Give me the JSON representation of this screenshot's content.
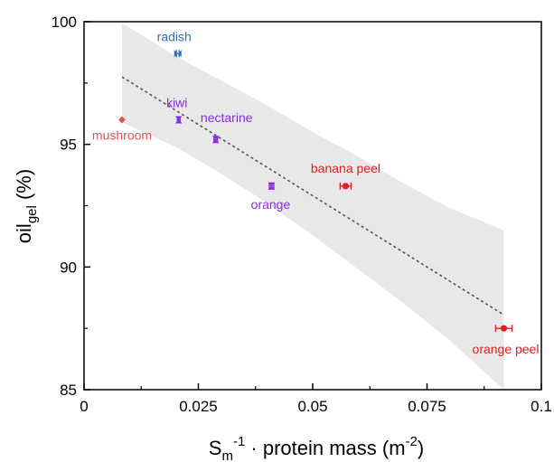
{
  "chart_data": {
    "type": "scatter",
    "xlabel": {
      "base": "S",
      "sub": "m",
      "sup": "-1",
      "rest": " · protein mass (m",
      "rest_sup": "-2",
      "tail": ")"
    },
    "ylabel": {
      "base": "oil",
      "sub": "gel",
      "tail": " (%)"
    },
    "xlim": [
      0,
      0.1
    ],
    "ylim": [
      85,
      100
    ],
    "x_ticks": [
      0,
      0.025,
      0.05,
      0.075,
      0.1
    ],
    "x_tick_labels": [
      "0",
      "0.025",
      "0.05",
      "0.075",
      "0.1"
    ],
    "y_ticks": [
      85,
      90,
      95,
      100
    ],
    "y_tick_labels": [
      "85",
      "90",
      "95",
      "100"
    ],
    "grid": false,
    "points": [
      {
        "label": "radish",
        "x": 0.0205,
        "y": 98.7,
        "xerr": 0.0003,
        "color": "#2f6fc0",
        "marker": "bowtie-h"
      },
      {
        "label": "kiwi",
        "x": 0.0207,
        "y": 96.0,
        "xerr": 0.0003,
        "color": "#8a2be2",
        "marker": "bowtie-v"
      },
      {
        "label": "mushroom",
        "x": 0.0083,
        "y": 96.0,
        "xerr": 0.0,
        "color": "#e05555",
        "marker": "diamond"
      },
      {
        "label": "nectarine",
        "x": 0.0288,
        "y": 95.2,
        "xerr": 0.0004,
        "color": "#8a2be2",
        "marker": "bowtie-v"
      },
      {
        "label": "orange",
        "x": 0.041,
        "y": 93.3,
        "xerr": 0.0005,
        "color": "#8a2be2",
        "marker": "bowtie-v"
      },
      {
        "label": "banana peel",
        "x": 0.0572,
        "y": 93.3,
        "xerr": 0.0012,
        "color": "#e02020",
        "marker": "circle"
      },
      {
        "label": "orange peel",
        "x": 0.0918,
        "y": 87.5,
        "xerr": 0.0018,
        "color": "#e02020",
        "marker": "circle"
      }
    ],
    "fit_line": {
      "x": [
        0.0083,
        0.0918
      ],
      "y": [
        97.75,
        88.05
      ],
      "style": "dotted",
      "color": "#555555"
    },
    "confidence_band": {
      "color": "#e8e8e8",
      "upper": [
        [
          0.0083,
          99.95
        ],
        [
          0.02,
          98.6
        ],
        [
          0.03,
          97.6
        ],
        [
          0.04,
          96.6
        ],
        [
          0.05,
          95.5
        ],
        [
          0.06,
          94.5
        ],
        [
          0.07,
          93.4
        ],
        [
          0.08,
          92.4
        ],
        [
          0.0918,
          91.5
        ]
      ],
      "lower": [
        [
          0.0918,
          85.0
        ],
        [
          0.08,
          87.0
        ],
        [
          0.07,
          88.5
        ],
        [
          0.06,
          89.9
        ],
        [
          0.05,
          91.3
        ],
        [
          0.04,
          92.6
        ],
        [
          0.03,
          93.8
        ],
        [
          0.02,
          94.9
        ],
        [
          0.0083,
          95.9
        ]
      ]
    }
  }
}
